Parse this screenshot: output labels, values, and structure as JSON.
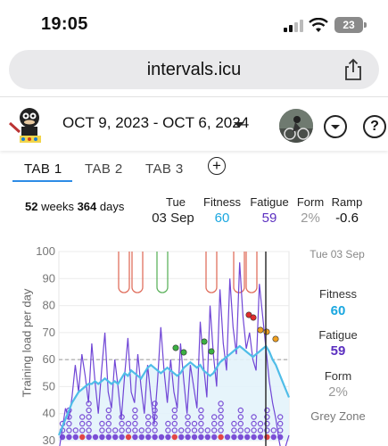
{
  "status_bar": {
    "time": "19:05",
    "battery": "23"
  },
  "browser": {
    "url": "intervals.icu"
  },
  "header": {
    "date_range": "OCT 9, 2023 - OCT 6, 2024"
  },
  "tabs": [
    {
      "label": "TAB 1"
    },
    {
      "label": "TAB 2"
    },
    {
      "label": "TAB 3"
    }
  ],
  "add_tab": "⊕",
  "summary": {
    "weeks": "52",
    "weeks_unit": "weeks",
    "days": "364",
    "days_unit": "days",
    "day": "Tue",
    "date": "03 Sep",
    "fitness_label": "Fitness",
    "fitness": "60",
    "fatigue_label": "Fatigue",
    "fatigue": "59",
    "form_label": "Form",
    "form": "2%",
    "ramp_label": "Ramp",
    "ramp": "-0.6"
  },
  "colors": {
    "fitness": "#1aa7e0",
    "fatigue": "#5b2fc0",
    "form": "#9a9a9a",
    "accent": "#2d8ce6"
  },
  "side_panel": {
    "date": "Tue 03 Sep",
    "fitness_label": "Fitness",
    "fitness": "60",
    "fatigue_label": "Fatigue",
    "fatigue": "59",
    "form_label": "Form",
    "form": "2%",
    "zone": "Grey Zone"
  },
  "chart_data": {
    "type": "line",
    "ylabel": "Training load per day",
    "ylim": [
      30,
      100
    ],
    "yticks": [
      "100",
      "90",
      "80",
      "70",
      "60",
      "50",
      "40",
      "30"
    ],
    "grid": true,
    "series": [
      {
        "name": "Fitness",
        "values": [
          32,
          35,
          38,
          41,
          44,
          46,
          48,
          49,
          50,
          51,
          51,
          52,
          51,
          52,
          53,
          52,
          51,
          52,
          51,
          53,
          55,
          54,
          56,
          55,
          54,
          53,
          55,
          57,
          58,
          57,
          56,
          55,
          56,
          57,
          56,
          55,
          54,
          55,
          57,
          58,
          59,
          58,
          57,
          58,
          56,
          55,
          54,
          55,
          57,
          59,
          60,
          61,
          62,
          63,
          64,
          65,
          64,
          63,
          62,
          61,
          62,
          63,
          64,
          65,
          63,
          60,
          58,
          55,
          52,
          49,
          46
        ]
      },
      {
        "name": "Fatigue",
        "values": [
          26,
          34,
          42,
          38,
          46,
          58,
          48,
          62,
          54,
          44,
          66,
          52,
          40,
          56,
          70,
          48,
          42,
          60,
          50,
          38,
          54,
          68,
          48,
          44,
          62,
          50,
          40,
          58,
          46,
          36,
          52,
          72,
          56,
          44,
          60,
          48,
          42,
          66,
          52,
          40,
          58,
          50,
          42,
          74,
          58,
          46,
          80,
          62,
          50,
          86,
          66,
          56,
          90,
          72,
          62,
          96,
          76,
          64,
          70,
          60,
          56,
          88,
          76,
          64,
          52,
          44,
          38,
          30,
          24,
          28,
          32
        ]
      }
    ]
  }
}
